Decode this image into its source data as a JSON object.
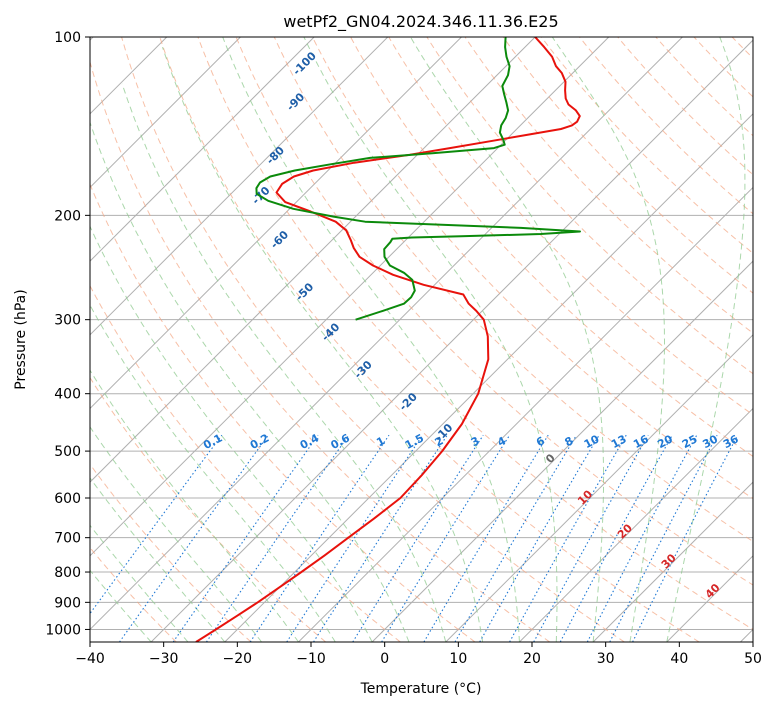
{
  "chart_data": {
    "type": "line",
    "chart_kind": "skew-T log-P diagram",
    "title": "wetPf2_GN04.2024.346.11.36.E25",
    "xlabel": "Temperature (°C)",
    "ylabel": "Pressure (hPa)",
    "xlim": [
      -40,
      50
    ],
    "ylim": [
      1050,
      100
    ],
    "y_scale": "log",
    "grid": true,
    "x_ticks": [
      "−40",
      "−30",
      "−20",
      "−10",
      "0",
      "10",
      "20",
      "30",
      "40",
      "50"
    ],
    "x_tick_values": [
      -40,
      -30,
      -20,
      -10,
      0,
      10,
      20,
      30,
      40,
      50
    ],
    "y_ticks": [
      "1000",
      "900",
      "800",
      "700",
      "600",
      "500",
      "400",
      "300",
      "200",
      "100"
    ],
    "y_tick_values": [
      1000,
      900,
      800,
      700,
      600,
      500,
      400,
      300,
      200,
      100
    ],
    "colors": {
      "temperature": "#e8120c",
      "dewpoint": "#0b8a0b",
      "isotherm_grid": "#999999",
      "dry_adiabat": "#f4a582",
      "moist_adiabat": "#8fc98f",
      "mixing_ratio": "#1f78d4",
      "frost_point_label": "#1f5fa8",
      "isotherm_label": "#d62728"
    },
    "series": [
      {
        "name": "",
        "kind": "temperature",
        "points": [
          {
            "p": 1050,
            "t": -23.9
          },
          {
            "p": 1000,
            "t": -22.9
          },
          {
            "p": 950,
            "t": -21.9
          },
          {
            "p": 900,
            "t": -20.9
          },
          {
            "p": 850,
            "t": -20.0
          },
          {
            "p": 800,
            "t": -19.1
          },
          {
            "p": 750,
            "t": -18.2
          },
          {
            "p": 700,
            "t": -17.4
          },
          {
            "p": 650,
            "t": -16.5
          },
          {
            "p": 600,
            "t": -15.7
          },
          {
            "p": 550,
            "t": -15.9
          },
          {
            "p": 500,
            "t": -16.4
          },
          {
            "p": 450,
            "t": -17.4
          },
          {
            "p": 400,
            "t": -19.3
          },
          {
            "p": 350,
            "t": -22.6
          },
          {
            "p": 320,
            "t": -25.8
          },
          {
            "p": 300,
            "t": -28.6
          },
          {
            "p": 290,
            "t": -30.8
          },
          {
            "p": 282,
            "t": -32.8
          },
          {
            "p": 272,
            "t": -34.8
          },
          {
            "p": 262,
            "t": -41.5
          },
          {
            "p": 252,
            "t": -47.0
          },
          {
            "p": 243,
            "t": -51.0
          },
          {
            "p": 235,
            "t": -54.0
          },
          {
            "p": 227,
            "t": -56.0
          },
          {
            "p": 220,
            "t": -57.5
          },
          {
            "p": 212,
            "t": -59.4
          },
          {
            "p": 205,
            "t": -62.0
          },
          {
            "p": 197,
            "t": -66.8
          },
          {
            "p": 190,
            "t": -71.5
          },
          {
            "p": 183,
            "t": -74.0
          },
          {
            "p": 177,
            "t": -74.4
          },
          {
            "p": 172,
            "t": -73.8
          },
          {
            "p": 168,
            "t": -72.0
          },
          {
            "p": 163,
            "t": -67.5
          },
          {
            "p": 158,
            "t": -61.0
          },
          {
            "p": 154,
            "t": -56.5
          },
          {
            "p": 150,
            "t": -52.0
          },
          {
            "p": 146,
            "t": -47.5
          },
          {
            "p": 143,
            "t": -44.0
          },
          {
            "p": 141,
            "t": -43.0
          },
          {
            "p": 139,
            "t": -42.8
          },
          {
            "p": 136,
            "t": -43.2
          },
          {
            "p": 133,
            "t": -44.5
          },
          {
            "p": 130,
            "t": -46.3
          },
          {
            "p": 127,
            "t": -47.5
          },
          {
            "p": 123,
            "t": -48.7
          },
          {
            "p": 119,
            "t": -49.8
          },
          {
            "p": 115,
            "t": -51.5
          },
          {
            "p": 112,
            "t": -53.2
          },
          {
            "p": 108,
            "t": -55.0
          },
          {
            "p": 104,
            "t": -57.4
          },
          {
            "p": 100,
            "t": -60.0
          }
        ]
      },
      {
        "name": "",
        "kind": "dewpoint",
        "points": [
          {
            "p": 300,
            "t": -46.0
          },
          {
            "p": 290,
            "t": -43.5
          },
          {
            "p": 282,
            "t": -41.6
          },
          {
            "p": 275,
            "t": -41.5
          },
          {
            "p": 268,
            "t": -41.9
          },
          {
            "p": 257,
            "t": -43.7
          },
          {
            "p": 250,
            "t": -45.8
          },
          {
            "p": 243,
            "t": -48.7
          },
          {
            "p": 235,
            "t": -50.6
          },
          {
            "p": 228,
            "t": -51.7
          },
          {
            "p": 222,
            "t": -51.8
          },
          {
            "p": 219,
            "t": -52.0
          },
          {
            "p": 218,
            "t": -49.5
          },
          {
            "p": 217,
            "t": -43.0
          },
          {
            "p": 215,
            "t": -32.5
          },
          {
            "p": 213,
            "t": -27.5
          },
          {
            "p": 210,
            "t": -36.0
          },
          {
            "p": 205,
            "t": -58.0
          },
          {
            "p": 201,
            "t": -63.0
          },
          {
            "p": 195,
            "t": -69.5
          },
          {
            "p": 189,
            "t": -74.0
          },
          {
            "p": 184,
            "t": -76.5
          },
          {
            "p": 180,
            "t": -77.3
          },
          {
            "p": 176,
            "t": -77.6
          },
          {
            "p": 172,
            "t": -77.0
          },
          {
            "p": 168,
            "t": -74.5
          },
          {
            "p": 164,
            "t": -70.5
          },
          {
            "p": 160,
            "t": -66.0
          },
          {
            "p": 157,
            "t": -58.0
          },
          {
            "p": 154,
            "t": -50.5
          },
          {
            "p": 152,
            "t": -49.5
          },
          {
            "p": 149,
            "t": -50.4
          },
          {
            "p": 145,
            "t": -51.8
          },
          {
            "p": 141,
            "t": -52.6
          },
          {
            "p": 137,
            "t": -53.0
          },
          {
            "p": 133,
            "t": -53.7
          },
          {
            "p": 129,
            "t": -55.0
          },
          {
            "p": 125,
            "t": -56.4
          },
          {
            "p": 121,
            "t": -57.8
          },
          {
            "p": 116,
            "t": -58.5
          },
          {
            "p": 112,
            "t": -59.5
          },
          {
            "p": 108,
            "t": -61.2
          },
          {
            "p": 104,
            "t": -62.7
          },
          {
            "p": 100,
            "t": -64.0
          }
        ]
      }
    ],
    "frost_point_labels": {
      "values": [
        "-100",
        "-90",
        "-80",
        "-70",
        "-60",
        "-50",
        "-40",
        "-30",
        "-20",
        "-10"
      ],
      "positions": [
        {
          "p": 112,
          "t": -87.0
        },
        {
          "p": 130,
          "t": -83.0
        },
        {
          "p": 160,
          "t": -78.5
        },
        {
          "p": 187,
          "t": -75.0
        },
        {
          "p": 222,
          "t": -66.5
        },
        {
          "p": 272,
          "t": -56.0
        },
        {
          "p": 318,
          "t": -47.0
        },
        {
          "p": 368,
          "t": -37.5
        },
        {
          "p": 417,
          "t": -27.0
        },
        {
          "p": 470,
          "t": -18.0
        }
      ]
    },
    "mixing_ratio_labels": [
      "0.1",
      "0.2",
      "0.4",
      "0.6",
      "1",
      "1.5",
      "2",
      "3",
      "4",
      "6",
      "8",
      "10",
      "13",
      "16",
      "20",
      "25",
      "30",
      "36"
    ],
    "mixing_ratio_values": [
      0.1,
      0.2,
      0.4,
      0.6,
      1,
      1.5,
      2,
      3,
      4,
      6,
      8,
      10,
      13,
      16,
      20,
      25,
      30,
      36
    ],
    "mixing_ratio_label_pressure": 488,
    "isotherm_labels": [
      {
        "label": "0",
        "t": 0,
        "p": 520,
        "color": "#666666"
      },
      {
        "label": "10",
        "t": 10,
        "p": 605,
        "color": "#d62728"
      },
      {
        "label": "20",
        "t": 20,
        "p": 690,
        "color": "#d62728"
      },
      {
        "label": "30",
        "t": 30,
        "p": 775,
        "color": "#d62728"
      },
      {
        "label": "40",
        "t": 40,
        "p": 870,
        "color": "#d62728"
      }
    ]
  }
}
